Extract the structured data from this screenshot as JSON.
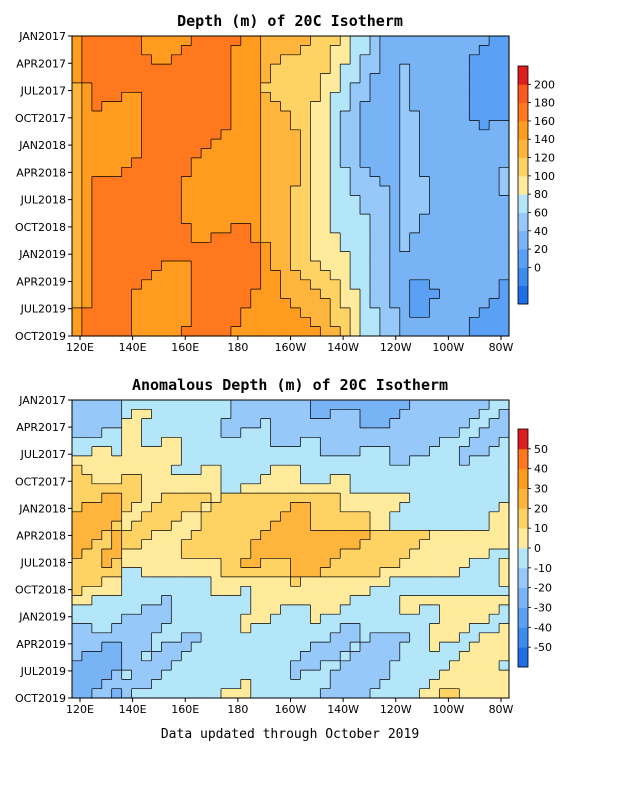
{
  "footer": "Data updated through October 2019",
  "chart_data": [
    {
      "type": "heatmap",
      "title": "Depth (m) of 20C Isotherm",
      "x_ticks": [
        "120E",
        "140E",
        "160E",
        "180",
        "160W",
        "140W",
        "120W",
        "100W",
        "80W"
      ],
      "y_ticks": [
        "JAN2017",
        "APR2017",
        "JUL2017",
        "OCT2017",
        "JAN2018",
        "APR2018",
        "JUL2018",
        "OCT2018",
        "JAN2019",
        "APR2019",
        "JUL2019",
        "OCT2019"
      ],
      "colorbar_ticks": [
        "200",
        "180",
        "160",
        "140",
        "120",
        "100",
        "80",
        "60",
        "40",
        "20",
        "0"
      ],
      "levels": [
        -20,
        0,
        20,
        40,
        60,
        80,
        100,
        120,
        140,
        160,
        180,
        200,
        220
      ],
      "colors": [
        "#1e6ee6",
        "#3c8cf0",
        "#5aa0f5",
        "#78b4f5",
        "#96c8fa",
        "#b4e6fa",
        "#ffeb9b",
        "#ffd264",
        "#ffb43c",
        "#ff9b1e",
        "#ff781e",
        "#ff5a1e",
        "#dc1e1e"
      ],
      "depth_by_longitude": {
        "longitudes": [
          "120E",
          "140E",
          "160E",
          "180",
          "160W",
          "140W",
          "120W",
          "100W",
          "80W"
        ],
        "values_m": [
          140,
          185,
          185,
          175,
          150,
          110,
          80,
          60,
          50
        ]
      }
    },
    {
      "type": "heatmap",
      "title": "Anomalous Depth (m) of 20C Isotherm",
      "x_ticks": [
        "120E",
        "140E",
        "160E",
        "180",
        "160W",
        "140W",
        "120W",
        "100W",
        "80W"
      ],
      "y_ticks": [
        "JAN2017",
        "APR2017",
        "JUL2017",
        "OCT2017",
        "JAN2018",
        "APR2018",
        "JUL2018",
        "OCT2018",
        "JAN2019",
        "APR2019",
        "JUL2019",
        "OCT2019"
      ],
      "colorbar_ticks": [
        "50",
        "40",
        "30",
        "20",
        "10",
        "0",
        "-10",
        "-20",
        "-30",
        "-40",
        "-50"
      ],
      "levels": [
        -60,
        -50,
        -40,
        -30,
        -20,
        -10,
        0,
        10,
        20,
        30,
        40,
        50,
        60
      ],
      "colors": [
        "#1e6ee6",
        "#3c8cf0",
        "#5aa0f5",
        "#78b4f5",
        "#96c8fa",
        "#b4e6fa",
        "#ffeb9b",
        "#ffd264",
        "#ffb43c",
        "#ff9b1e",
        "#ff781e",
        "#dc1e1e"
      ]
    }
  ]
}
